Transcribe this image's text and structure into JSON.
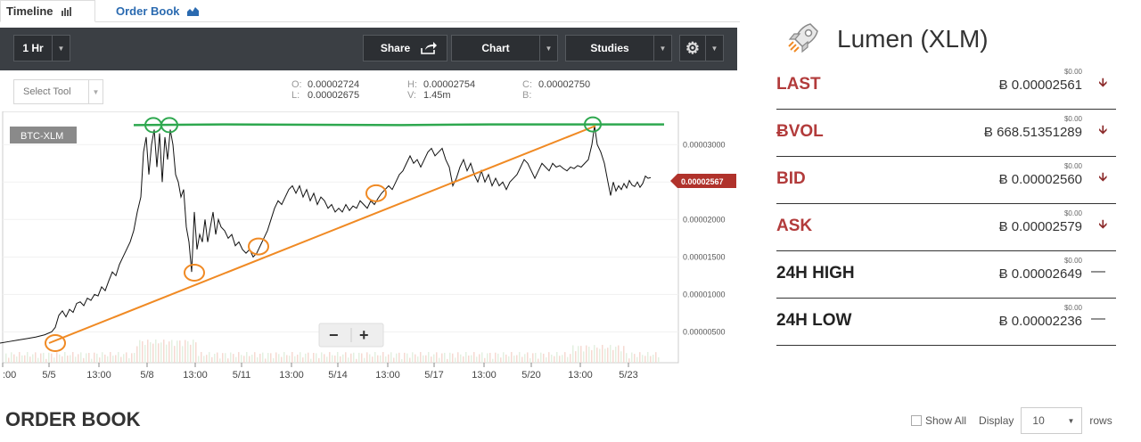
{
  "tabs": {
    "timeline": "Timeline",
    "order_book": "Order Book"
  },
  "toolbar": {
    "interval": "1 Hr",
    "share": "Share",
    "chart": "Chart",
    "studies": "Studies"
  },
  "subbar": {
    "select_tool": "Select Tool",
    "o_key": "O:",
    "o_val": "0.00002724",
    "l_key": "L:",
    "l_val": "0.00002675",
    "h_key": "H:",
    "h_val": "0.00002754",
    "v_key": "V:",
    "v_val": "1.45m",
    "c_key": "C:",
    "c_val": "0.00002750",
    "b_key": "B:"
  },
  "chart": {
    "symbol": "BTC-XLM",
    "current_price_label": "0.00002567",
    "zoom_minus": "−",
    "zoom_plus": "+"
  },
  "chart_data": {
    "type": "line",
    "x_tick_labels": [
      ":00",
      "5/5",
      "13:00",
      "5/8",
      "13:00",
      "5/11",
      "13:00",
      "5/14",
      "13:00",
      "5/17",
      "13:00",
      "5/20",
      "13:00",
      "5/23"
    ],
    "y_tick_labels": [
      "0.00003000",
      "0.00002500",
      "0.00002000",
      "0.00001500",
      "0.00001000",
      "0.00000500"
    ],
    "ylim": [
      3.5e-06,
      3.36e-05
    ],
    "price_series": [
      [
        0,
        3.5e-06
      ],
      [
        10,
        3.7e-06
      ],
      [
        20,
        3.9e-06
      ],
      [
        30,
        4.1e-06
      ],
      [
        40,
        4.3e-06
      ],
      [
        50,
        4.6e-06
      ],
      [
        58,
        5e-06
      ],
      [
        62,
        5.6e-06
      ],
      [
        66,
        7.2e-06
      ],
      [
        70,
        7.8e-06
      ],
      [
        74,
        7e-06
      ],
      [
        78,
        8e-06
      ],
      [
        82,
        7.6e-06
      ],
      [
        86,
        8.8e-06
      ],
      [
        90,
        9e-06
      ],
      [
        94,
        8.5e-06
      ],
      [
        98,
        9.5e-06
      ],
      [
        102,
        9.2e-06
      ],
      [
        106,
        1e-05
      ],
      [
        110,
        9.8e-06
      ],
      [
        114,
        1.1e-05
      ],
      [
        118,
        1.05e-05
      ],
      [
        122,
        1.18e-05
      ],
      [
        126,
        1.3e-05
      ],
      [
        130,
        1.25e-05
      ],
      [
        134,
        1.4e-05
      ],
      [
        138,
        1.5e-05
      ],
      [
        142,
        1.6e-05
      ],
      [
        146,
        1.7e-05
      ],
      [
        150,
        1.85e-05
      ],
      [
        154,
        2.1e-05
      ],
      [
        158,
        2.3e-05
      ],
      [
        161,
        2.9e-05
      ],
      [
        164,
        3.1e-05
      ],
      [
        167,
        2.6e-05
      ],
      [
        170,
        3e-05
      ],
      [
        173,
        3.2e-05
      ],
      [
        176,
        2.7e-05
      ],
      [
        179,
        3.15e-05
      ],
      [
        182,
        2.5e-05
      ],
      [
        185,
        3.1e-05
      ],
      [
        188,
        2.8e-05
      ],
      [
        191,
        3.2e-05
      ],
      [
        194,
        3e-05
      ],
      [
        197,
        2.6e-05
      ],
      [
        200,
        2.5e-05
      ],
      [
        203,
        2.3e-05
      ],
      [
        206,
        2.4e-05
      ],
      [
        209,
        1.9e-05
      ],
      [
        212,
        1.7e-05
      ],
      [
        215,
        1.3e-05
      ],
      [
        218,
        2.1e-05
      ],
      [
        221,
        1.6e-05
      ],
      [
        224,
        1.8e-05
      ],
      [
        227,
        1.7e-05
      ],
      [
        230,
        2e-05
      ],
      [
        233,
        1.7e-05
      ],
      [
        236,
        1.9e-05
      ],
      [
        239,
        2.1e-05
      ],
      [
        242,
        1.8e-05
      ],
      [
        245,
        2e-05
      ],
      [
        248,
        1.9e-05
      ],
      [
        252,
        1.85e-05
      ],
      [
        256,
        1.75e-05
      ],
      [
        260,
        1.8e-05
      ],
      [
        264,
        1.65e-05
      ],
      [
        268,
        1.7e-05
      ],
      [
        272,
        1.6e-05
      ],
      [
        276,
        1.55e-05
      ],
      [
        280,
        1.6e-05
      ],
      [
        284,
        1.5e-05
      ],
      [
        288,
        1.55e-05
      ],
      [
        292,
        1.65e-05
      ],
      [
        296,
        1.75e-05
      ],
      [
        300,
        1.85e-05
      ],
      [
        304,
        2e-05
      ],
      [
        308,
        2.15e-05
      ],
      [
        312,
        2.25e-05
      ],
      [
        316,
        2.2e-05
      ],
      [
        320,
        2.3e-05
      ],
      [
        324,
        2.4e-05
      ],
      [
        328,
        2.45e-05
      ],
      [
        332,
        2.35e-05
      ],
      [
        336,
        2.45e-05
      ],
      [
        340,
        2.3e-05
      ],
      [
        344,
        2.4e-05
      ],
      [
        348,
        2.25e-05
      ],
      [
        352,
        2.35e-05
      ],
      [
        356,
        2.2e-05
      ],
      [
        360,
        2.3e-05
      ],
      [
        364,
        2.25e-05
      ],
      [
        368,
        2.15e-05
      ],
      [
        372,
        2.2e-05
      ],
      [
        376,
        2.1e-05
      ],
      [
        380,
        2.15e-05
      ],
      [
        384,
        2.1e-05
      ],
      [
        388,
        2.2e-05
      ],
      [
        392,
        2.12e-05
      ],
      [
        396,
        2.18e-05
      ],
      [
        400,
        2.15e-05
      ],
      [
        404,
        2.25e-05
      ],
      [
        408,
        2.2e-05
      ],
      [
        412,
        2.15e-05
      ],
      [
        416,
        2.25e-05
      ],
      [
        420,
        2.2e-05
      ],
      [
        424,
        2.28e-05
      ],
      [
        428,
        2.35e-05
      ],
      [
        432,
        2.4e-05
      ],
      [
        436,
        2.45e-05
      ],
      [
        440,
        2.4e-05
      ],
      [
        444,
        2.5e-05
      ],
      [
        448,
        2.6e-05
      ],
      [
        452,
        2.65e-05
      ],
      [
        456,
        2.75e-05
      ],
      [
        460,
        2.85e-05
      ],
      [
        464,
        2.75e-05
      ],
      [
        468,
        2.8e-05
      ],
      [
        472,
        2.7e-05
      ],
      [
        476,
        2.8e-05
      ],
      [
        480,
        2.9e-05
      ],
      [
        484,
        2.95e-05
      ],
      [
        488,
        2.85e-05
      ],
      [
        492,
        2.9e-05
      ],
      [
        496,
        2.95e-05
      ],
      [
        500,
        2.8e-05
      ],
      [
        504,
        2.7e-05
      ],
      [
        508,
        2.45e-05
      ],
      [
        512,
        2.55e-05
      ],
      [
        516,
        2.7e-05
      ],
      [
        520,
        2.8e-05
      ],
      [
        524,
        2.65e-05
      ],
      [
        528,
        2.75e-05
      ],
      [
        532,
        2.6e-05
      ],
      [
        536,
        2.5e-05
      ],
      [
        540,
        2.65e-05
      ],
      [
        544,
        2.5e-05
      ],
      [
        548,
        2.6e-05
      ],
      [
        552,
        2.45e-05
      ],
      [
        556,
        2.55e-05
      ],
      [
        560,
        2.45e-05
      ],
      [
        564,
        2.5e-05
      ],
      [
        568,
        2.4e-05
      ],
      [
        572,
        2.5e-05
      ],
      [
        576,
        2.55e-05
      ],
      [
        580,
        2.6e-05
      ],
      [
        584,
        2.7e-05
      ],
      [
        588,
        2.8e-05
      ],
      [
        592,
        2.75e-05
      ],
      [
        596,
        2.65e-05
      ],
      [
        600,
        2.55e-05
      ],
      [
        604,
        2.65e-05
      ],
      [
        608,
        2.75e-05
      ],
      [
        612,
        2.7e-05
      ],
      [
        616,
        2.65e-05
      ],
      [
        620,
        2.75e-05
      ],
      [
        624,
        2.7e-05
      ],
      [
        628,
        2.72e-05
      ],
      [
        632,
        2.68e-05
      ],
      [
        636,
        2.65e-05
      ],
      [
        640,
        2.7e-05
      ],
      [
        644,
        2.68e-05
      ],
      [
        648,
        2.72e-05
      ],
      [
        652,
        2.7e-05
      ],
      [
        656,
        2.75e-05
      ],
      [
        660,
        2.8e-05
      ],
      [
        664,
        3e-05
      ],
      [
        667,
        3.25e-05
      ],
      [
        670,
        3e-05
      ],
      [
        674,
        2.9e-05
      ],
      [
        678,
        2.75e-05
      ],
      [
        682,
        2.5e-05
      ],
      [
        685,
        2.32e-05
      ],
      [
        688,
        2.5e-05
      ],
      [
        691,
        2.38e-05
      ],
      [
        694,
        2.45e-05
      ],
      [
        697,
        2.4e-05
      ],
      [
        700,
        2.48e-05
      ],
      [
        703,
        2.42e-05
      ],
      [
        706,
        2.52e-05
      ],
      [
        709,
        2.46e-05
      ],
      [
        712,
        2.44e-05
      ],
      [
        715,
        2.5e-05
      ],
      [
        718,
        2.43e-05
      ],
      [
        721,
        2.48e-05
      ],
      [
        724,
        2.58e-05
      ],
      [
        727,
        2.55e-05
      ],
      [
        730,
        2.56e-05
      ]
    ],
    "trend_green": [
      [
        150,
        3.26e-05
      ],
      [
        250,
        3.27e-05
      ],
      [
        450,
        3.26e-05
      ],
      [
        550,
        3.27e-05
      ],
      [
        745,
        3.27e-05
      ]
    ],
    "trend_orange": [
      [
        55,
        3.5e-06
      ],
      [
        668,
        3.25e-05
      ]
    ],
    "green_circles": [
      [
        172,
        3.26e-05
      ],
      [
        190,
        3.26e-05
      ],
      [
        665,
        3.27e-05
      ]
    ],
    "orange_circles": [
      [
        62,
        3.5e-06
      ],
      [
        218,
        1.29e-05
      ],
      [
        290,
        1.64e-05
      ],
      [
        422,
        2.35e-05
      ]
    ],
    "colors": {
      "green": "#2ea84f",
      "orange": "#f08a24",
      "price": "#111111",
      "badge": "#b0322b"
    }
  },
  "asset": {
    "title": "Lumen (XLM)"
  },
  "stats": [
    {
      "label": "LAST",
      "usd": "$0.00",
      "btc": "Ƀ 0.00002561",
      "dir": "down",
      "color": "#b23b3b"
    },
    {
      "label": "ɃVOL",
      "usd": "$0.00",
      "btc": "Ƀ 668.51351289",
      "dir": "down",
      "color": "#b23b3b"
    },
    {
      "label": "BID",
      "usd": "$0.00",
      "btc": "Ƀ 0.00002560",
      "dir": "down",
      "color": "#b23b3b"
    },
    {
      "label": "ASK",
      "usd": "$0.00",
      "btc": "Ƀ 0.00002579",
      "dir": "down",
      "color": "#b23b3b"
    },
    {
      "label": "24H HIGH",
      "usd": "$0.00",
      "btc": "Ƀ 0.00002649",
      "dir": "flat",
      "color": "#222222"
    },
    {
      "label": "24H LOW",
      "usd": "$0.00",
      "btc": "Ƀ 0.00002236",
      "dir": "flat",
      "color": "#222222"
    }
  ],
  "order_book": {
    "title": "ORDER BOOK",
    "show_all": "Show All",
    "display": "Display",
    "rows_value": "10",
    "rows": "rows"
  }
}
